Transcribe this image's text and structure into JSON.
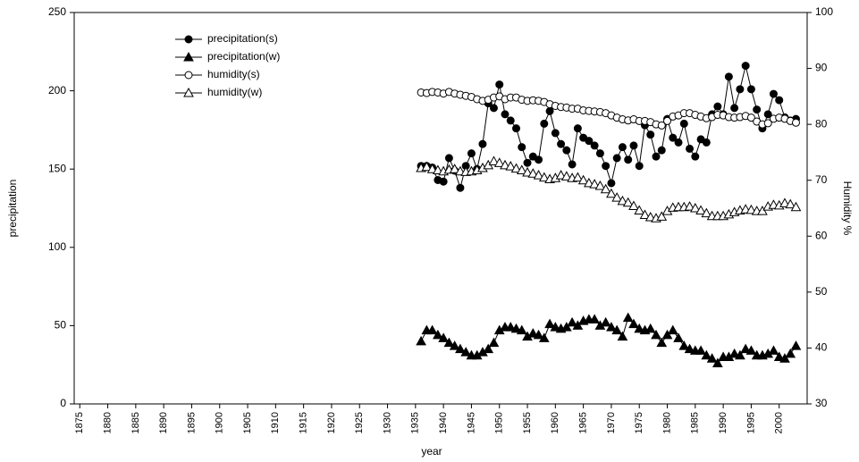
{
  "chart_data": {
    "type": "line",
    "x_label": "year",
    "y_label": "precipitation",
    "y2_label": "Humidity %",
    "x": [
      1936,
      1937,
      1938,
      1939,
      1940,
      1941,
      1942,
      1943,
      1944,
      1945,
      1946,
      1947,
      1948,
      1949,
      1950,
      1951,
      1952,
      1953,
      1954,
      1955,
      1956,
      1957,
      1958,
      1959,
      1960,
      1961,
      1962,
      1963,
      1964,
      1965,
      1966,
      1967,
      1968,
      1969,
      1970,
      1971,
      1972,
      1973,
      1974,
      1975,
      1976,
      1977,
      1978,
      1979,
      1980,
      1981,
      1982,
      1983,
      1984,
      1985,
      1986,
      1987,
      1988,
      1989,
      1990,
      1991,
      1992,
      1993,
      1994,
      1995,
      1996,
      1997,
      1998,
      1999,
      2000,
      2001,
      2002,
      2003
    ],
    "series": [
      {
        "name": "precipitation(s)",
        "color": "#000000",
        "marker": "circle",
        "filled": true,
        "values": [
          152,
          152,
          151,
          143,
          142,
          157,
          149,
          138,
          152,
          160,
          150,
          166,
          192,
          189,
          204,
          185,
          181,
          176,
          164,
          154,
          158,
          156,
          179,
          187,
          173,
          166,
          162,
          153,
          176,
          170,
          168,
          165,
          160,
          152,
          141,
          157,
          164,
          156,
          165,
          152,
          178,
          172,
          158,
          162,
          182,
          170,
          167,
          179,
          163,
          158,
          169,
          167,
          185,
          190,
          185,
          209,
          189,
          201,
          216,
          201,
          188,
          176,
          185,
          198,
          194,
          183,
          181,
          182
        ]
      },
      {
        "name": "precipitation(w)",
        "color": "#000000",
        "marker": "triangle",
        "filled": true,
        "values": [
          40,
          47,
          47,
          44,
          42,
          39,
          37,
          35,
          33,
          31,
          31,
          33,
          35,
          39,
          47,
          49,
          49,
          48,
          47,
          43,
          45,
          44,
          42,
          51,
          49,
          48,
          49,
          52,
          50,
          53,
          54,
          54,
          50,
          52,
          49,
          47,
          43,
          55,
          51,
          48,
          47,
          48,
          44,
          39,
          44,
          47,
          42,
          37,
          35,
          34,
          34,
          31,
          29,
          26,
          30,
          30,
          32,
          31,
          35,
          34,
          31,
          31,
          32,
          34,
          30,
          29,
          32,
          37
        ]
      },
      {
        "name": "humidity(s)",
        "color": "#000000",
        "marker": "circle",
        "filled": false,
        "axis": "y2",
        "values": [
          85.7,
          85.6,
          85.8,
          85.7,
          85.5,
          85.8,
          85.5,
          85.3,
          85.1,
          84.9,
          84.5,
          84.2,
          84.4,
          84.8,
          85.0,
          84.5,
          84.8,
          84.8,
          84.4,
          84.2,
          84.3,
          84.2,
          84.0,
          83.6,
          83.3,
          83.1,
          83.0,
          82.8,
          82.8,
          82.5,
          82.4,
          82.3,
          82.2,
          82.0,
          81.6,
          81.2,
          80.9,
          80.7,
          80.9,
          80.6,
          80.6,
          80.4,
          80.0,
          79.8,
          80.6,
          81.4,
          81.6,
          82.0,
          82.0,
          81.7,
          81.4,
          81.1,
          81.3,
          81.7,
          81.6,
          81.3,
          81.2,
          81.3,
          81.5,
          81.2,
          80.5,
          80.0,
          80.2,
          81.0,
          81.2,
          81.0,
          80.6,
          80.3
        ]
      },
      {
        "name": "humidity(w)",
        "color": "#000000",
        "marker": "triangle",
        "filled": false,
        "axis": "y2",
        "values": [
          72.2,
          72.4,
          72.0,
          71.8,
          71.6,
          71.9,
          72.0,
          71.6,
          71.5,
          71.6,
          71.8,
          72.2,
          72.7,
          73.4,
          73.1,
          72.7,
          72.5,
          72.1,
          71.8,
          71.4,
          71.2,
          70.9,
          70.5,
          70.2,
          70.4,
          70.9,
          70.7,
          70.4,
          70.5,
          70.0,
          69.5,
          69.3,
          69.0,
          68.4,
          67.6,
          66.9,
          66.3,
          66.0,
          65.4,
          64.6,
          63.8,
          63.4,
          63.2,
          63.5,
          64.5,
          65.1,
          65.2,
          65.2,
          65.3,
          65.0,
          64.6,
          64.1,
          63.6,
          63.6,
          63.6,
          63.9,
          64.3,
          64.6,
          64.8,
          64.7,
          64.5,
          64.5,
          65.3,
          65.6,
          65.5,
          65.9,
          65.7,
          65.2
        ]
      }
    ],
    "xlim": [
      1874,
      2005
    ],
    "xticks": [
      1875,
      1880,
      1885,
      1890,
      1895,
      1900,
      1905,
      1910,
      1915,
      1920,
      1925,
      1930,
      1935,
      1940,
      1945,
      1950,
      1955,
      1960,
      1965,
      1970,
      1975,
      1980,
      1985,
      1990,
      1995,
      2000
    ],
    "ylim": [
      0,
      250
    ],
    "yticks": [
      0,
      50,
      100,
      150,
      200,
      250
    ],
    "y2lim": [
      30,
      100
    ],
    "y2ticks": [
      30,
      40,
      50,
      60,
      70,
      80,
      90,
      100
    ],
    "grid": false,
    "legend": "top-left"
  }
}
